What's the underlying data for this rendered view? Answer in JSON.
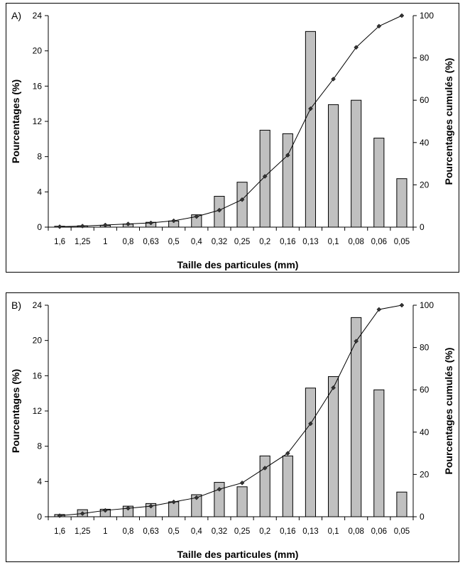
{
  "chart_data": [
    {
      "type": "bar",
      "panel_label": "A)",
      "categories": [
        "1,6",
        "1,25",
        "1",
        "0,8",
        "0,63",
        "0,5",
        "0,4",
        "0,32",
        "0,25",
        "0,2",
        "0,16",
        "0,13",
        "0,1",
        "0,08",
        "0,06",
        "0,05"
      ],
      "series": [
        {
          "values": [
            0.1,
            0.15,
            0.2,
            0.35,
            0.55,
            0.7,
            1.4,
            3.5,
            5.1,
            11.0,
            10.6,
            22.2,
            13.9,
            14.4,
            10.1,
            5.5
          ],
          "axis": "left",
          "color": "#c0c0c0"
        },
        {
          "values": [
            0.2,
            0.5,
            1,
            1.5,
            2,
            3,
            5,
            8,
            13,
            24,
            34,
            56,
            70,
            85,
            95,
            100
          ],
          "axis": "right",
          "type": "line"
        }
      ],
      "ylabel": "Pourcentages (%)",
      "y2label": "Pourcentages cumulés (%)",
      "xlabel": "Taille des particules (mm)",
      "ylim": [
        0,
        24
      ],
      "y2lim": [
        0,
        100
      ],
      "yticks": [
        "0",
        "4",
        "8",
        "12",
        "16",
        "20",
        "24"
      ],
      "y2ticks": [
        "0",
        "20",
        "40",
        "60",
        "80",
        "100"
      ],
      "grid": false
    },
    {
      "type": "bar",
      "panel_label": "B)",
      "categories": [
        "1,6",
        "1,25",
        "1",
        "0,8",
        "0,63",
        "0,5",
        "0,4",
        "0,32",
        "0,25",
        "0,2",
        "0,16",
        "0,13",
        "0,1",
        "0,08",
        "0,06",
        "0,05"
      ],
      "series": [
        {
          "values": [
            0.25,
            0.8,
            0.85,
            1.2,
            1.5,
            1.7,
            2.5,
            3.9,
            3.4,
            6.9,
            6.9,
            14.6,
            15.9,
            22.6,
            14.4,
            2.8
          ],
          "axis": "left",
          "color": "#c0c0c0"
        },
        {
          "values": [
            0.5,
            1.5,
            3,
            4,
            5,
            7,
            9,
            13,
            16,
            23,
            30,
            44,
            61,
            83,
            98,
            100
          ],
          "axis": "right",
          "type": "line"
        }
      ],
      "ylabel": "Pourcentages (%)",
      "y2label": "Pourcentages cumulés (%)",
      "xlabel": "Taille des particules (mm)",
      "ylim": [
        0,
        24
      ],
      "y2lim": [
        0,
        100
      ],
      "yticks": [
        "0",
        "4",
        "8",
        "12",
        "16",
        "20",
        "24"
      ],
      "y2ticks": [
        "0",
        "20",
        "40",
        "60",
        "80",
        "100"
      ],
      "grid": false
    }
  ]
}
